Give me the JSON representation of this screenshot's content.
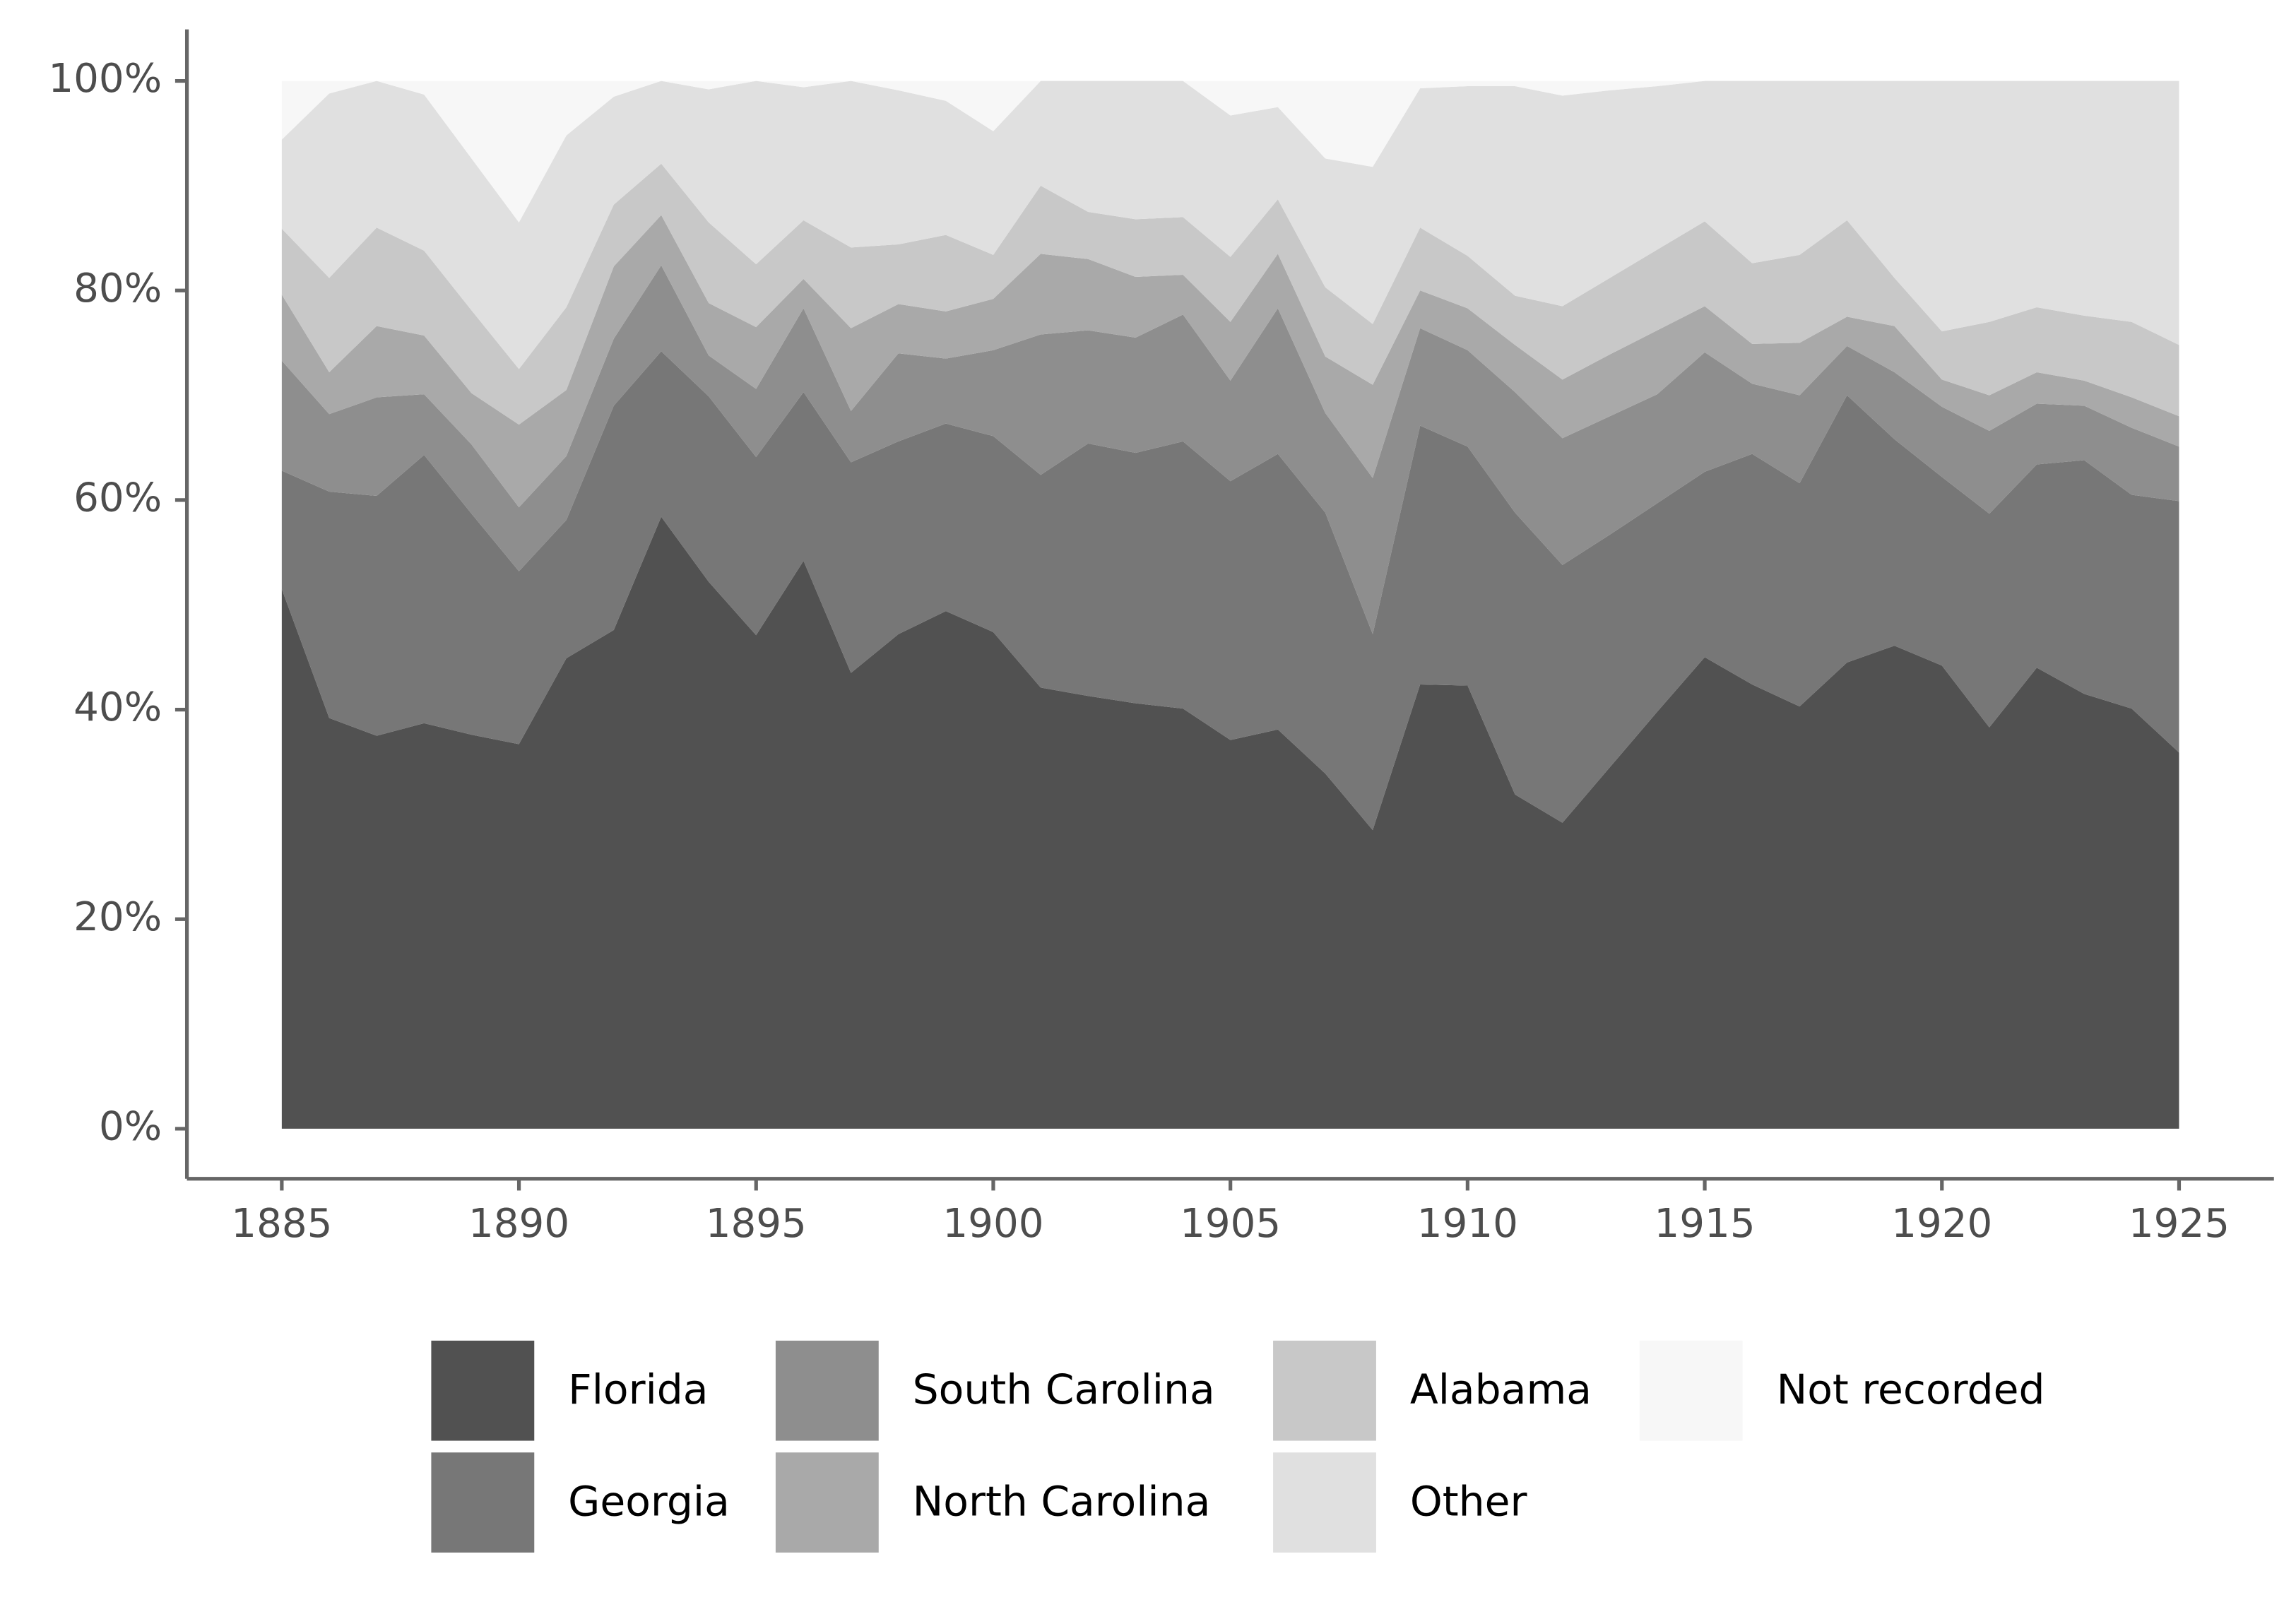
{
  "chart_data": {
    "type": "stacked-area",
    "x": [
      1885,
      1886,
      1887,
      1888,
      1889,
      1890,
      1891,
      1892,
      1893,
      1894,
      1895,
      1896,
      1897,
      1898,
      1899,
      1900,
      1901,
      1902,
      1903,
      1904,
      1905,
      1906,
      1907,
      1908,
      1909,
      1910,
      1911,
      1912,
      1913,
      1914,
      1915,
      1916,
      1917,
      1918,
      1919,
      1920,
      1921,
      1922,
      1923,
      1924,
      1925
    ],
    "series": [
      {
        "name": "Florida",
        "color": "#515151",
        "values": [
          51.5,
          39.2,
          37.5,
          38.7,
          37.6,
          36.7,
          44.9,
          47.6,
          58.4,
          52.2,
          47.1,
          54.2,
          43.5,
          47.2,
          49.4,
          47.4,
          42.1,
          41.3,
          40.6,
          40.1,
          37.1,
          38.1,
          33.9,
          28.5,
          42.4,
          42.3,
          31.9,
          29.2,
          34.5,
          39.8,
          45.0,
          42.4,
          40.3,
          44.5,
          46.1,
          44.2,
          38.3,
          44.0,
          41.5,
          40.1,
          35.9
        ]
      },
      {
        "name": "Georgia",
        "color": "#777777",
        "values": [
          11.3,
          21.6,
          22.9,
          25.6,
          21.1,
          16.5,
          13.2,
          21.4,
          15.8,
          17.7,
          17.0,
          16.1,
          20.1,
          18.4,
          17.9,
          18.7,
          20.3,
          24.1,
          23.9,
          25.5,
          24.7,
          26.3,
          24.9,
          18.7,
          24.7,
          22.8,
          26.9,
          24.6,
          22.2,
          19.9,
          17.7,
          22.0,
          21.3,
          25.5,
          19.7,
          18.0,
          20.4,
          19.4,
          22.3,
          20.4,
          24.0
        ]
      },
      {
        "name": "South Carolina",
        "color": "#8e8e8e",
        "values": [
          10.5,
          7.4,
          9.4,
          5.8,
          6.6,
          6.1,
          6.1,
          6.4,
          8.2,
          3.9,
          6.5,
          8.0,
          4.9,
          8.4,
          6.2,
          8.2,
          13.4,
          10.8,
          11.0,
          12.1,
          9.6,
          13.9,
          9.5,
          14.9,
          9.3,
          9.2,
          11.5,
          12.1,
          11.3,
          10.4,
          11.4,
          6.7,
          8.4,
          4.7,
          6.4,
          6.7,
          7.9,
          5.8,
          5.2,
          6.4,
          5.2
        ]
      },
      {
        "name": "North Carolina",
        "color": "#a9a9a9",
        "values": [
          6.3,
          4.0,
          6.8,
          5.6,
          4.9,
          7.9,
          6.3,
          6.9,
          4.8,
          5.0,
          5.9,
          2.8,
          7.9,
          4.7,
          4.5,
          4.9,
          7.7,
          6.8,
          5.8,
          3.8,
          5.6,
          5.2,
          5.4,
          8.9,
          3.6,
          4.0,
          4.5,
          5.6,
          5.9,
          6.1,
          4.4,
          3.8,
          5.0,
          2.8,
          4.4,
          2.6,
          3.4,
          3.0,
          2.4,
          2.9,
          2.9
        ]
      },
      {
        "name": "Alabama",
        "color": "#c8c8c8",
        "values": [
          6.3,
          9.0,
          9.4,
          8.1,
          7.9,
          5.3,
          7.9,
          5.9,
          4.9,
          7.7,
          6.0,
          5.6,
          7.7,
          5.7,
          7.3,
          4.2,
          6.5,
          4.5,
          5.5,
          5.5,
          6.2,
          5.2,
          6.6,
          5.8,
          6.0,
          5.0,
          4.7,
          7.0,
          7.3,
          7.7,
          8.1,
          7.7,
          8.4,
          9.2,
          4.6,
          4.6,
          7.0,
          6.2,
          6.2,
          7.2,
          6.8
        ]
      },
      {
        "name": "Other",
        "color": "#e0e0e0",
        "values": [
          8.5,
          17.6,
          14.0,
          14.9,
          14.5,
          14.0,
          16.4,
          10.3,
          7.9,
          12.7,
          17.5,
          12.7,
          15.9,
          14.7,
          12.8,
          11.8,
          10.0,
          12.5,
          13.2,
          13.0,
          13.5,
          8.8,
          12.3,
          15.0,
          13.3,
          16.2,
          20.0,
          20.1,
          17.9,
          15.6,
          13.4,
          17.4,
          16.6,
          13.3,
          18.8,
          23.9,
          23.0,
          21.6,
          22.4,
          23.0,
          25.2
        ]
      },
      {
        "name": "Not recorded",
        "color": "#f7f7f7",
        "values": [
          5.6,
          1.2,
          0,
          1.3,
          7.4,
          13.5,
          5.2,
          1.5,
          0,
          0.8,
          0,
          0.6,
          0,
          0.9,
          1.9,
          4.8,
          0,
          0,
          0,
          0,
          3.3,
          2.5,
          7.4,
          8.2,
          0.7,
          0.5,
          0.5,
          1.4,
          0.9,
          0.5,
          0,
          0,
          0,
          0,
          0,
          0,
          0,
          0,
          0,
          0,
          0
        ]
      }
    ],
    "xlim": [
      1883,
      1927
    ],
    "xticks": [
      1885,
      1890,
      1895,
      1900,
      1905,
      1910,
      1915,
      1920,
      1925
    ],
    "ylim": [
      -5,
      105
    ],
    "yticks": [
      {
        "value": 0,
        "label": "0%"
      },
      {
        "value": 20,
        "label": "20%"
      },
      {
        "value": 40,
        "label": "40%"
      },
      {
        "value": 60,
        "label": "60%"
      },
      {
        "value": 80,
        "label": "80%"
      },
      {
        "value": 100,
        "label": "100%"
      }
    ],
    "legend": "bottom"
  }
}
